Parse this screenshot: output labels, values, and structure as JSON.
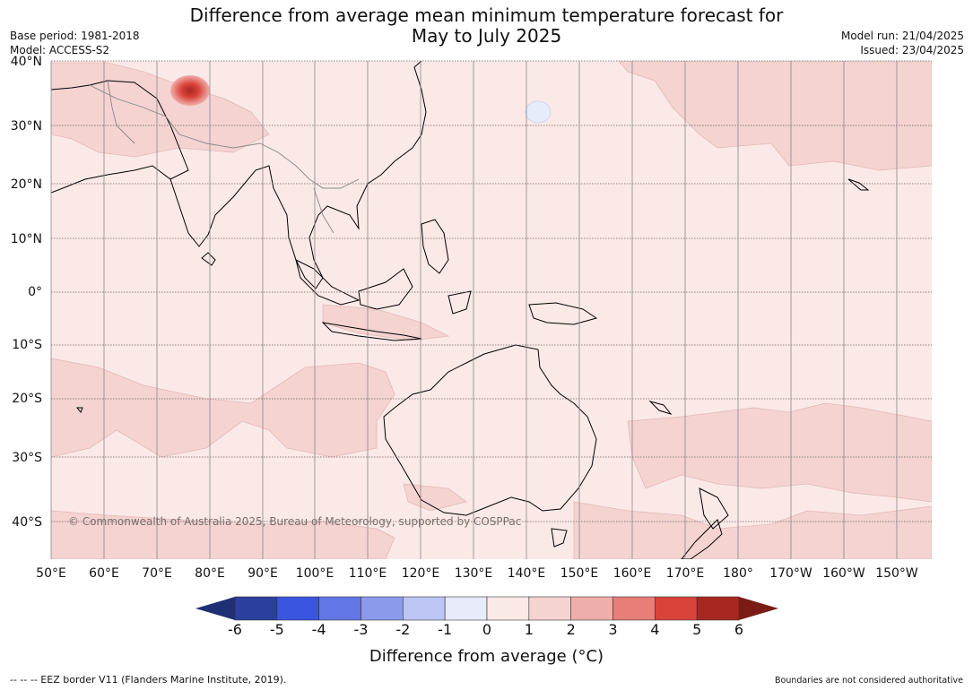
{
  "title_line1": "Difference from average mean minimum temperature forecast for",
  "title_line2": "May to July 2025",
  "meta_left": [
    "Base period: 1981-2018",
    "Model: ACCESS-S2"
  ],
  "meta_right": [
    "Model run: 21/04/2025",
    "Issued: 23/04/2025"
  ],
  "map": {
    "lat_labels": [
      "40°N",
      "30°N",
      "20°N",
      "10°N",
      "0°",
      "10°S",
      "20°S",
      "30°S",
      "40°S"
    ],
    "lon_labels": [
      "50°E",
      "60°E",
      "70°E",
      "80°E",
      "90°E",
      "100°E",
      "110°E",
      "120°E",
      "130°E",
      "140°E",
      "150°E",
      "160°E",
      "170°E",
      "180°",
      "170°W",
      "160°W",
      "150°W"
    ],
    "copyright": "© Commonwealth of Australia 2025, Bureau of Meteorology, supported by COSPPac",
    "colors": {
      "base": "#fbe9e7",
      "light_anomaly": "#f4d3d1",
      "hot_spot": "#d9433a",
      "cool_spot": "#e6ecfa"
    }
  },
  "colorbar": {
    "ticks": [
      "-6",
      "-5",
      "-4",
      "-3",
      "-2",
      "-1",
      "0",
      "1",
      "2",
      "3",
      "4",
      "5",
      "6"
    ],
    "colors": [
      "#2b3f9e",
      "#3a55e0",
      "#6276e6",
      "#8b9aeb",
      "#bcc5f3",
      "#e8ebf9",
      "#fbe9e7",
      "#f4d3d1",
      "#eeaeaa",
      "#e77e78",
      "#d9433a",
      "#a82720"
    ],
    "low_end_color": "#1f2f74",
    "high_end_color": "#7a1b16",
    "title": "Difference from average (°C)"
  },
  "footer_left": "--  --  -- EEZ border V11 (Flanders Marine Institute, 2019).",
  "footer_right": "Boundaries are not considered authoritative"
}
